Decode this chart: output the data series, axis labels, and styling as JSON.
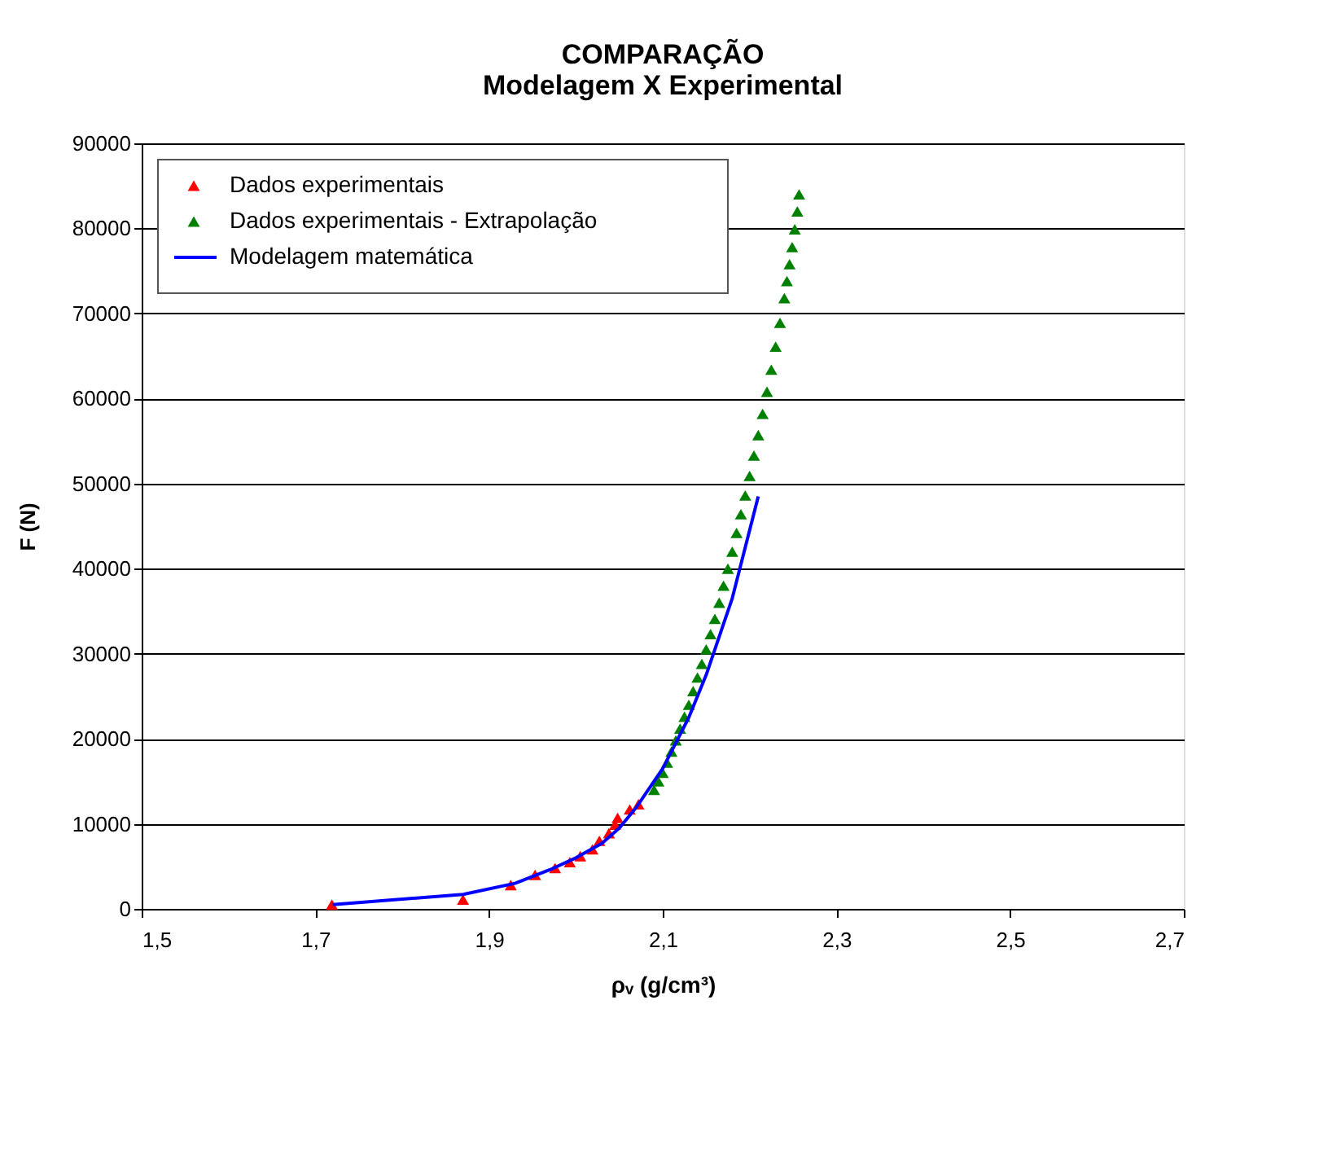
{
  "chart_data": {
    "type": "scatter",
    "title": "COMPARAÇÃO\nModelagem X Experimental",
    "xlabel": "ρᵥ (g/cm³)",
    "ylabel": "F (N)",
    "xlim": [
      1.5,
      2.7
    ],
    "ylim": [
      0,
      90000
    ],
    "xticks": [
      {
        "value": 1.5,
        "label": "1,5"
      },
      {
        "value": 1.7,
        "label": "1,7"
      },
      {
        "value": 1.9,
        "label": "1,9"
      },
      {
        "value": 2.1,
        "label": "2,1"
      },
      {
        "value": 2.3,
        "label": "2,3"
      },
      {
        "value": 2.5,
        "label": "2,5"
      },
      {
        "value": 2.7,
        "label": "2,7"
      }
    ],
    "yticks": [
      0,
      10000,
      20000,
      30000,
      40000,
      50000,
      60000,
      70000,
      80000,
      90000
    ],
    "grid": "y",
    "legend": "top left",
    "marker": "triangle",
    "series": [
      {
        "name": "Dados experimentais",
        "color": "#ff0000",
        "x": [
          1.719,
          1.87,
          1.925,
          1.953,
          1.976,
          1.993,
          2.005,
          2.019,
          2.027,
          2.038,
          2.045,
          2.048,
          2.062,
          2.072
        ],
        "values": [
          500,
          1100,
          2800,
          4000,
          4800,
          5500,
          6200,
          7000,
          8000,
          8900,
          9900,
          10700,
          11700,
          12300
        ]
      },
      {
        "name": "Dados experimentais - Extrapolação",
        "color": "#008000",
        "x": [
          2.09,
          2.095,
          2.1,
          2.105,
          2.11,
          2.115,
          2.12,
          2.125,
          2.13,
          2.135,
          2.14,
          2.145,
          2.15,
          2.155,
          2.16,
          2.165,
          2.17,
          2.175,
          2.18,
          2.185,
          2.19,
          2.195,
          2.2,
          2.205,
          2.21,
          2.215,
          2.22,
          2.225,
          2.23,
          2.235,
          2.24,
          2.243,
          2.246,
          2.249,
          2.252,
          2.255,
          2.257
        ],
        "values": [
          14000,
          15000,
          16000,
          17200,
          18500,
          19800,
          21200,
          22600,
          24000,
          25600,
          27200,
          28800,
          30500,
          32300,
          34100,
          36000,
          38000,
          40000,
          42000,
          44200,
          46400,
          48600,
          50900,
          53300,
          55700,
          58200,
          60800,
          63400,
          66100,
          68900,
          71800,
          73800,
          75800,
          77800,
          79900,
          82000,
          84000
        ]
      },
      {
        "name": "Modelagem matemática",
        "type": "line",
        "marker": "none",
        "color": "#0000ff",
        "x": [
          1.72,
          1.87,
          1.93,
          1.97,
          2.0,
          2.03,
          2.05,
          2.07,
          2.1,
          2.13,
          2.15,
          2.18,
          2.2,
          2.21
        ],
        "values": [
          500,
          1700,
          3000,
          4600,
          6000,
          7700,
          9500,
          12000,
          16500,
          22500,
          27500,
          36500,
          44500,
          48500
        ]
      }
    ]
  }
}
